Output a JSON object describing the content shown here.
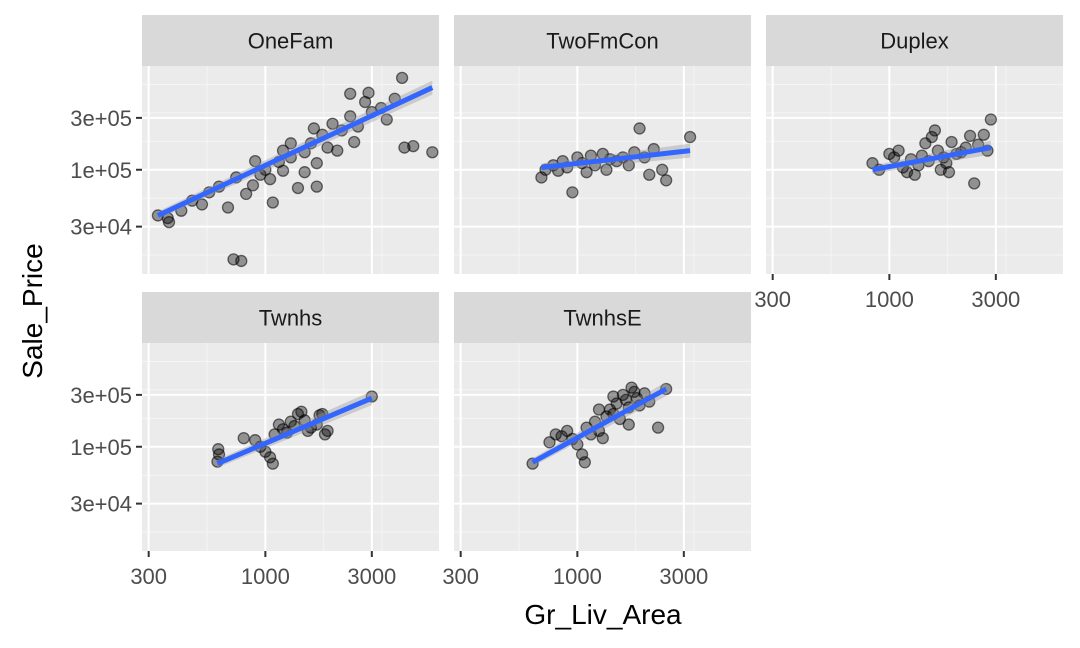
{
  "chart_data": {
    "type": "scatter",
    "xlabel": "Gr_Liv_Area",
    "ylabel": "Sale_Price",
    "x_scale": "log10",
    "y_scale": "log10",
    "xlim": [
      280,
      6000
    ],
    "ylim": [
      11000,
      900000
    ],
    "x_ticks": [
      300,
      1000,
      3000
    ],
    "x_tick_labels": [
      "300",
      "1000",
      "3000"
    ],
    "y_ticks": [
      30000,
      100000,
      300000
    ],
    "y_tick_labels": [
      "3e+04",
      "1e+05",
      "3e+05"
    ],
    "smooth": "lm",
    "facets": [
      {
        "label": "OneFam",
        "fit": {
          "x": [
            330,
            5600
          ],
          "y": [
            38000,
            570000
          ]
        },
        "points": [
          [
            330,
            38000
          ],
          [
            365,
            36000
          ],
          [
            370,
            33000
          ],
          [
            420,
            42000
          ],
          [
            470,
            52000
          ],
          [
            520,
            48000
          ],
          [
            560,
            62000
          ],
          [
            620,
            70000
          ],
          [
            680,
            45000
          ],
          [
            720,
            15000
          ],
          [
            740,
            85000
          ],
          [
            780,
            14500
          ],
          [
            820,
            60000
          ],
          [
            880,
            72000
          ],
          [
            950,
            90000
          ],
          [
            1000,
            100000
          ],
          [
            1050,
            82000
          ],
          [
            1080,
            50000
          ],
          [
            1150,
            118000
          ],
          [
            1200,
            98000
          ],
          [
            1300,
            130000
          ],
          [
            1400,
            68000
          ],
          [
            1500,
            145000
          ],
          [
            1600,
            175000
          ],
          [
            1700,
            115000
          ],
          [
            1800,
            210000
          ],
          [
            1900,
            160000
          ],
          [
            2000,
            265000
          ],
          [
            2200,
            230000
          ],
          [
            2400,
            310000
          ],
          [
            2600,
            250000
          ],
          [
            2800,
            420000
          ],
          [
            3000,
            340000
          ],
          [
            3300,
            370000
          ],
          [
            3500,
            290000
          ],
          [
            3800,
            450000
          ],
          [
            4100,
            700000
          ],
          [
            4200,
            160000
          ],
          [
            4600,
            165000
          ],
          [
            5600,
            145000
          ],
          [
            2400,
            500000
          ],
          [
            2900,
            510000
          ],
          [
            1200,
            150000
          ],
          [
            1500,
            95000
          ],
          [
            1700,
            70000
          ],
          [
            2100,
            150000
          ],
          [
            900,
            120000
          ],
          [
            1300,
            175000
          ],
          [
            1650,
            240000
          ],
          [
            2500,
            180000
          ]
        ]
      },
      {
        "label": "TwoFmCon",
        "fit": {
          "x": [
            690,
            3200
          ],
          "y": [
            105000,
            150000
          ]
        },
        "points": [
          [
            690,
            85000
          ],
          [
            720,
            100000
          ],
          [
            780,
            110000
          ],
          [
            820,
            98000
          ],
          [
            860,
            120000
          ],
          [
            900,
            105000
          ],
          [
            950,
            62000
          ],
          [
            1000,
            130000
          ],
          [
            1050,
            115000
          ],
          [
            1100,
            95000
          ],
          [
            1150,
            135000
          ],
          [
            1200,
            110000
          ],
          [
            1300,
            140000
          ],
          [
            1350,
            100000
          ],
          [
            1400,
            125000
          ],
          [
            1500,
            120000
          ],
          [
            1600,
            130000
          ],
          [
            1700,
            110000
          ],
          [
            1800,
            145000
          ],
          [
            1900,
            240000
          ],
          [
            2000,
            130000
          ],
          [
            2100,
            90000
          ],
          [
            2200,
            155000
          ],
          [
            2400,
            100000
          ],
          [
            2500,
            80000
          ],
          [
            3200,
            200000
          ]
        ]
      },
      {
        "label": "Duplex",
        "fit": {
          "x": [
            840,
            2850
          ],
          "y": [
            100000,
            160000
          ]
        },
        "points": [
          [
            840,
            115000
          ],
          [
            900,
            100000
          ],
          [
            1000,
            140000
          ],
          [
            1050,
            130000
          ],
          [
            1100,
            150000
          ],
          [
            1150,
            105000
          ],
          [
            1200,
            95000
          ],
          [
            1250,
            125000
          ],
          [
            1300,
            90000
          ],
          [
            1350,
            110000
          ],
          [
            1400,
            135000
          ],
          [
            1450,
            175000
          ],
          [
            1500,
            120000
          ],
          [
            1550,
            200000
          ],
          [
            1600,
            230000
          ],
          [
            1650,
            150000
          ],
          [
            1700,
            100000
          ],
          [
            1750,
            130000
          ],
          [
            1800,
            115000
          ],
          [
            1850,
            95000
          ],
          [
            1900,
            180000
          ],
          [
            2000,
            140000
          ],
          [
            2100,
            145000
          ],
          [
            2200,
            160000
          ],
          [
            2300,
            205000
          ],
          [
            2400,
            75000
          ],
          [
            2500,
            170000
          ],
          [
            2650,
            210000
          ],
          [
            2750,
            150000
          ],
          [
            2850,
            290000
          ]
        ]
      },
      {
        "label": "Twnhs",
        "fit": {
          "x": [
            610,
            3000
          ],
          "y": [
            70000,
            280000
          ]
        },
        "points": [
          [
            610,
            73000
          ],
          [
            620,
            85000
          ],
          [
            615,
            95000
          ],
          [
            800,
            120000
          ],
          [
            900,
            115000
          ],
          [
            950,
            100000
          ],
          [
            1000,
            90000
          ],
          [
            1050,
            80000
          ],
          [
            1080,
            70000
          ],
          [
            1100,
            130000
          ],
          [
            1150,
            160000
          ],
          [
            1200,
            145000
          ],
          [
            1250,
            135000
          ],
          [
            1300,
            170000
          ],
          [
            1350,
            155000
          ],
          [
            1400,
            200000
          ],
          [
            1450,
            210000
          ],
          [
            1500,
            175000
          ],
          [
            1550,
            140000
          ],
          [
            1600,
            150000
          ],
          [
            1700,
            160000
          ],
          [
            1750,
            195000
          ],
          [
            1800,
            200000
          ],
          [
            1850,
            130000
          ],
          [
            1900,
            140000
          ],
          [
            3000,
            290000
          ]
        ]
      },
      {
        "label": "TwnhsE",
        "fit": {
          "x": [
            630,
            2500
          ],
          "y": [
            72000,
            340000
          ]
        },
        "points": [
          [
            630,
            70000
          ],
          [
            750,
            110000
          ],
          [
            800,
            130000
          ],
          [
            850,
            125000
          ],
          [
            900,
            140000
          ],
          [
            950,
            118000
          ],
          [
            1000,
            105000
          ],
          [
            1050,
            85000
          ],
          [
            1080,
            72000
          ],
          [
            1100,
            150000
          ],
          [
            1150,
            130000
          ],
          [
            1200,
            170000
          ],
          [
            1250,
            140000
          ],
          [
            1300,
            120000
          ],
          [
            1350,
            190000
          ],
          [
            1400,
            220000
          ],
          [
            1450,
            200000
          ],
          [
            1500,
            250000
          ],
          [
            1550,
            180000
          ],
          [
            1600,
            300000
          ],
          [
            1650,
            270000
          ],
          [
            1700,
            230000
          ],
          [
            1750,
            350000
          ],
          [
            1800,
            320000
          ],
          [
            1850,
            280000
          ],
          [
            1900,
            240000
          ],
          [
            2000,
            310000
          ],
          [
            2100,
            260000
          ],
          [
            2300,
            150000
          ],
          [
            2500,
            340000
          ],
          [
            1700,
            160000
          ],
          [
            1450,
            290000
          ],
          [
            1250,
            220000
          ]
        ]
      }
    ]
  }
}
